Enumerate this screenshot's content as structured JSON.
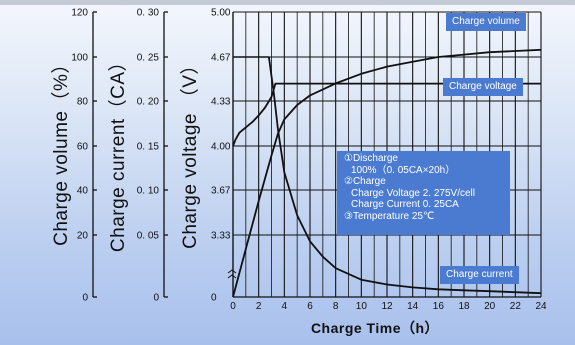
{
  "chart_data": {
    "type": "line",
    "xlabel": "Charge Time（h）",
    "x_ticks": [
      "0",
      "2",
      "4",
      "6",
      "8",
      "10",
      "12",
      "14",
      "16",
      "18",
      "20",
      "22",
      "24"
    ],
    "xlim": [
      0,
      24
    ],
    "y_axes": {
      "volume": {
        "label": "Charge volume（%）",
        "ticks": [
          "120",
          "100",
          "80",
          "60",
          "40",
          "20",
          "0"
        ]
      },
      "current": {
        "label": "Charge current（CA）",
        "ticks": [
          "0. 30",
          "0. 25",
          "0. 20",
          "0. 15",
          "0. 10",
          "0. 05",
          "0"
        ]
      },
      "voltage": {
        "label": "Charge voltage （V）",
        "ticks": [
          "5.00",
          "4.67",
          "4.33",
          "4.00",
          "3.67",
          "3.33",
          "0"
        ]
      }
    },
    "grid": true,
    "series": [
      {
        "name": "Charge volume",
        "axis": "volume",
        "x": [
          0,
          1,
          2,
          3,
          3.5,
          4,
          5,
          6,
          8,
          10,
          12,
          14,
          16,
          18,
          20,
          22,
          24
        ],
        "y": [
          0,
          20,
          40,
          59,
          68,
          74,
          80,
          84,
          89,
          93,
          96,
          98,
          100,
          101,
          102,
          102.5,
          103
        ]
      },
      {
        "name": "Charge voltage",
        "axis": "voltage",
        "x": [
          0,
          0.2,
          0.5,
          1,
          1.5,
          2,
          2.5,
          3,
          3.3,
          24
        ],
        "y": [
          4.0,
          4.05,
          4.1,
          4.14,
          4.18,
          4.23,
          4.29,
          4.37,
          4.47,
          4.47
        ]
      },
      {
        "name": "Charge current",
        "axis": "current",
        "x": [
          2.8,
          3.2,
          3.5,
          4,
          5,
          6,
          7,
          8,
          10,
          12,
          14,
          16,
          18,
          20,
          22,
          24
        ],
        "y": [
          0.25,
          0.21,
          0.175,
          0.13,
          0.085,
          0.058,
          0.042,
          0.03,
          0.018,
          0.013,
          0.01,
          0.008,
          0.007,
          0.006,
          0.005,
          0.004
        ]
      }
    ],
    "series_labels": {
      "volume": "Charge volume",
      "voltage": "Charge voltage",
      "current": "Charge current"
    },
    "notes": [
      "①Discharge",
      "100%（0. 05CA×20h）",
      "②Charge",
      "Charge Voltage  2. 275V/cell",
      "Charge Current 0. 25CA",
      "③Temperature 25℃"
    ]
  }
}
